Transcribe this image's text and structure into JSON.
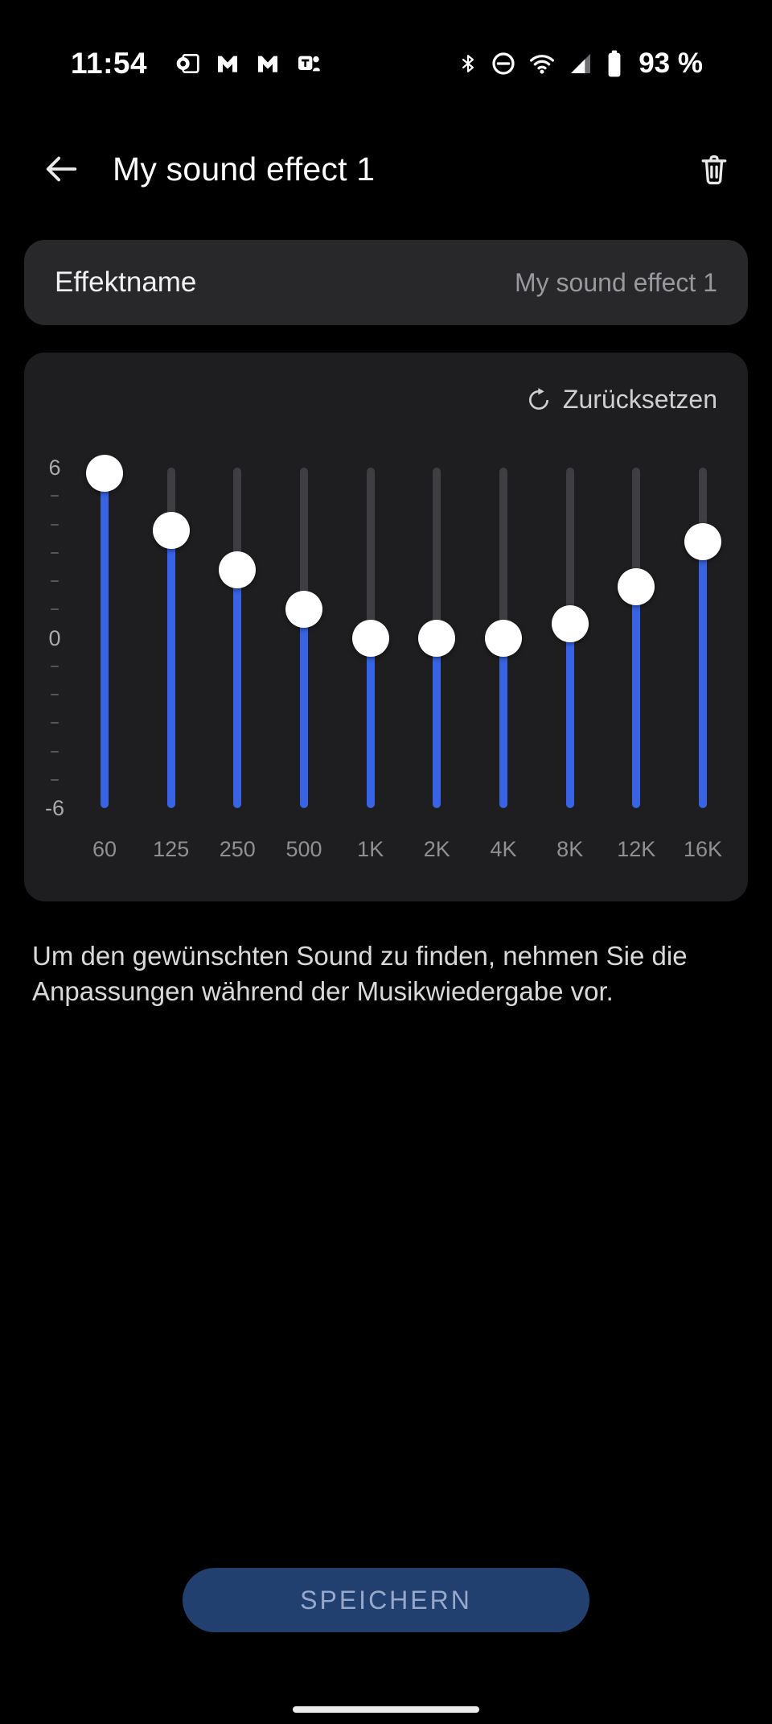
{
  "status_bar": {
    "time": "11:54",
    "battery_text": "93 %",
    "notification_icons": [
      "outlook-icon",
      "gmail-icon",
      "gmail-icon",
      "teams-icon"
    ],
    "system_icons": [
      "bluetooth-icon",
      "do-not-disturb-icon",
      "wifi-icon",
      "signal-icon",
      "battery-icon"
    ]
  },
  "header": {
    "title": "My sound effect 1"
  },
  "effect_name": {
    "label": "Effektname",
    "value": "My sound effect 1"
  },
  "equalizer": {
    "reset_label": "Zurücksetzen",
    "axis_labels": {
      "max": "6",
      "mid": "0",
      "min": "-6"
    },
    "value_range": [
      -6,
      6
    ],
    "bands": [
      {
        "freq": "60",
        "value": 5.8
      },
      {
        "freq": "125",
        "value": 3.8
      },
      {
        "freq": "250",
        "value": 2.4
      },
      {
        "freq": "500",
        "value": 1.0
      },
      {
        "freq": "1K",
        "value": 0
      },
      {
        "freq": "2K",
        "value": 0
      },
      {
        "freq": "4K",
        "value": 0
      },
      {
        "freq": "8K",
        "value": 0.5
      },
      {
        "freq": "12K",
        "value": 1.8
      },
      {
        "freq": "16K",
        "value": 3.4
      }
    ]
  },
  "description": "Um den gewünschten Sound zu finden, nehmen Sie die Anpassungen während der Musikwiedergabe vor.",
  "save_button_label": "SPEICHERN",
  "colors": {
    "accent_blue": "#3763e4",
    "track_gray": "#3f3f43",
    "save_bg": "#21406f",
    "card_bg": "#28282b",
    "eq_card_bg": "#1e1e20"
  }
}
